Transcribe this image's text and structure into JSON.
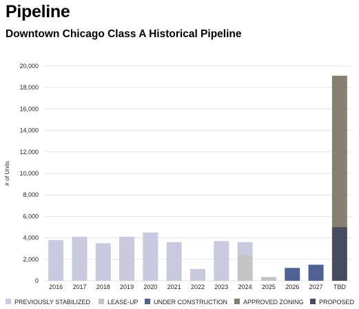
{
  "page": {
    "title": "Pipeline"
  },
  "chart_data": {
    "type": "bar",
    "stacked": true,
    "title": "Downtown Chicago Class A Historical Pipeline",
    "xlabel": "",
    "ylabel": "# of Units",
    "ylim": [
      0,
      20000
    ],
    "yticks": [
      0,
      2000,
      4000,
      6000,
      8000,
      10000,
      12000,
      14000,
      16000,
      18000,
      20000
    ],
    "ytick_labels": [
      "0",
      "2,000",
      "4,000",
      "6,000",
      "8,000",
      "10,000",
      "12,000",
      "14,000",
      "16,000",
      "18,000",
      "20,000"
    ],
    "grid": true,
    "legend_position": "bottom",
    "categories": [
      "2016",
      "2017",
      "2018",
      "2019",
      "2020",
      "2021",
      "2022",
      "2023",
      "2024",
      "2025",
      "2026",
      "2027",
      "TBD"
    ],
    "series": [
      {
        "name": "PREVIOUSLY STABILIZED",
        "color": "#c9cadf",
        "values": [
          3800,
          4100,
          3500,
          4100,
          4500,
          3600,
          1100,
          3700,
          1200,
          0,
          0,
          0,
          0
        ]
      },
      {
        "name": "LEASE-UP",
        "color": "#c4c4c4",
        "values": [
          0,
          0,
          0,
          0,
          0,
          0,
          0,
          0,
          2400,
          350,
          0,
          0,
          0
        ]
      },
      {
        "name": "UNDER CONSTRUCTION",
        "color": "#4f6294",
        "values": [
          0,
          0,
          0,
          0,
          0,
          0,
          0,
          0,
          0,
          0,
          1200,
          1500,
          0
        ]
      },
      {
        "name": "APPROVED ZONING",
        "color": "#858070",
        "values": [
          0,
          0,
          0,
          0,
          0,
          0,
          0,
          0,
          0,
          0,
          0,
          0,
          14100
        ]
      },
      {
        "name": "PROPOSED",
        "color": "#474d5e",
        "values": [
          0,
          0,
          0,
          0,
          0,
          0,
          0,
          0,
          0,
          0,
          0,
          0,
          5000
        ]
      }
    ],
    "stack_order": [
      "LEASE-UP",
      "PREVIOUSLY STABILIZED",
      "UNDER CONSTRUCTION",
      "PROPOSED",
      "APPROVED ZONING"
    ]
  }
}
